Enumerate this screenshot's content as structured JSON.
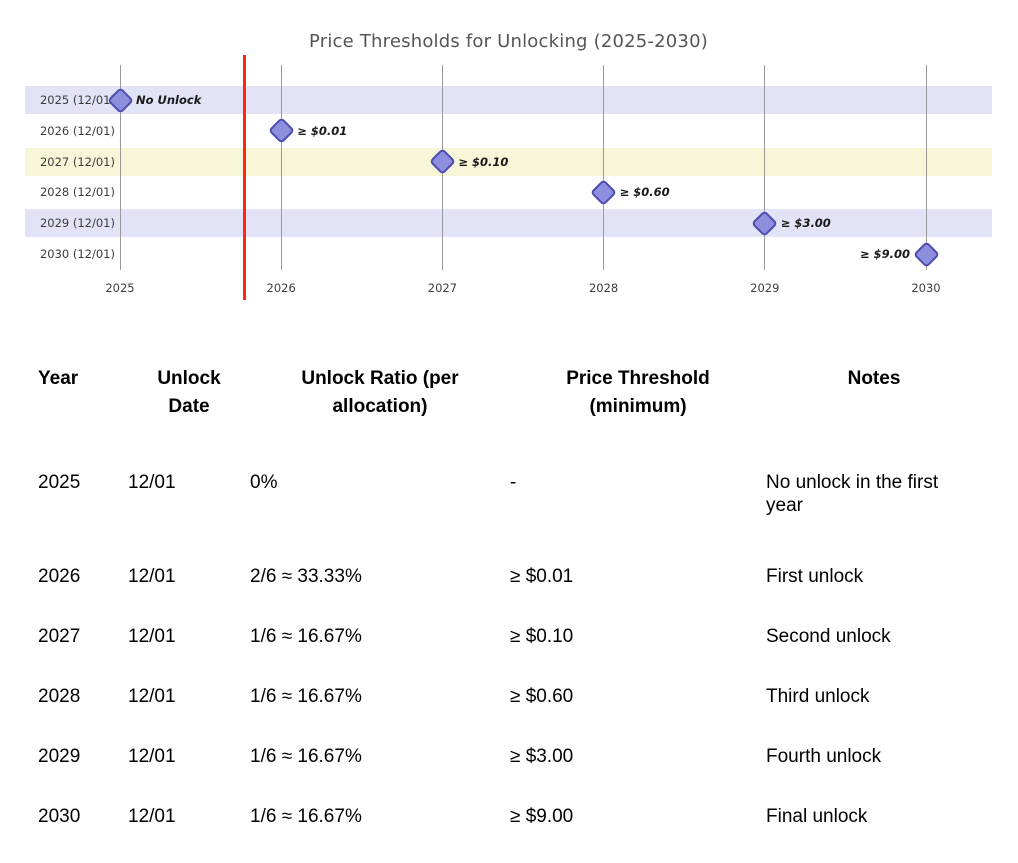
{
  "chart_data": {
    "type": "scatter",
    "title": "Price Thresholds for Unlocking (2025-2030)",
    "xlabel": "",
    "ylabel": "",
    "x_ticks": [
      "2025",
      "2026",
      "2027",
      "2028",
      "2029",
      "2030"
    ],
    "x_range": [
      2024.55,
      2030.4
    ],
    "y_categories": [
      "2025 (12/01)",
      "2026 (12/01)",
      "2027 (12/01)",
      "2028 (12/01)",
      "2029 (12/01)",
      "2030 (12/01)"
    ],
    "marker": "diamond",
    "grid": "vertical-gridlines",
    "legend": false,
    "red_vline_x": 2025.77,
    "rows": [
      {
        "label": "2025 (12/01)",
        "x": 2025,
        "annotation": "No Unlock",
        "band": "lavender",
        "annotation_side": "right"
      },
      {
        "label": "2026 (12/01)",
        "x": 2026,
        "annotation": "≥ $0.01",
        "band": "none",
        "annotation_side": "right"
      },
      {
        "label": "2027 (12/01)",
        "x": 2027,
        "annotation": "≥ $0.10",
        "band": "yellow",
        "annotation_side": "right"
      },
      {
        "label": "2028 (12/01)",
        "x": 2028,
        "annotation": "≥ $0.60",
        "band": "none",
        "annotation_side": "right"
      },
      {
        "label": "2029 (12/01)",
        "x": 2029,
        "annotation": "≥ $3.00",
        "band": "lavender",
        "annotation_side": "right"
      },
      {
        "label": "2030 (12/01)",
        "x": 2030,
        "annotation": "≥ $9.00",
        "band": "none",
        "annotation_side": "left"
      }
    ],
    "colors": {
      "band_lavender": "#e2e3f6",
      "band_yellow": "#f8f6d8",
      "marker_fill": "#8e8ede",
      "marker_border": "#4c4cae",
      "red_line": "#fe2712",
      "gridline": "#999999",
      "title_color": "#555555",
      "axis_label_color": "#3c3c3c",
      "annotation_color": "#1a1a1a"
    }
  },
  "table": {
    "headers": [
      "Year",
      "Unlock Date",
      "Unlock Ratio (per allocation)",
      "Price Threshold (minimum)",
      "Notes"
    ],
    "rows": [
      [
        "2025",
        "12/01",
        "0%",
        "-",
        "No unlock in the first year"
      ],
      [
        "2026",
        "12/01",
        "2/6 ≈ 33.33%",
        "≥ $0.01",
        "First unlock"
      ],
      [
        "2027",
        "12/01",
        "1/6 ≈ 16.67%",
        "≥ $0.10",
        "Second unlock"
      ],
      [
        "2028",
        "12/01",
        "1/6 ≈ 16.67%",
        "≥ $0.60",
        "Third unlock"
      ],
      [
        "2029",
        "12/01",
        "1/6 ≈ 16.67%",
        "≥ $3.00",
        "Fourth unlock"
      ],
      [
        "2030",
        "12/01",
        "1/6 ≈ 16.67%",
        "≥ $9.00",
        "Final unlock"
      ]
    ]
  }
}
